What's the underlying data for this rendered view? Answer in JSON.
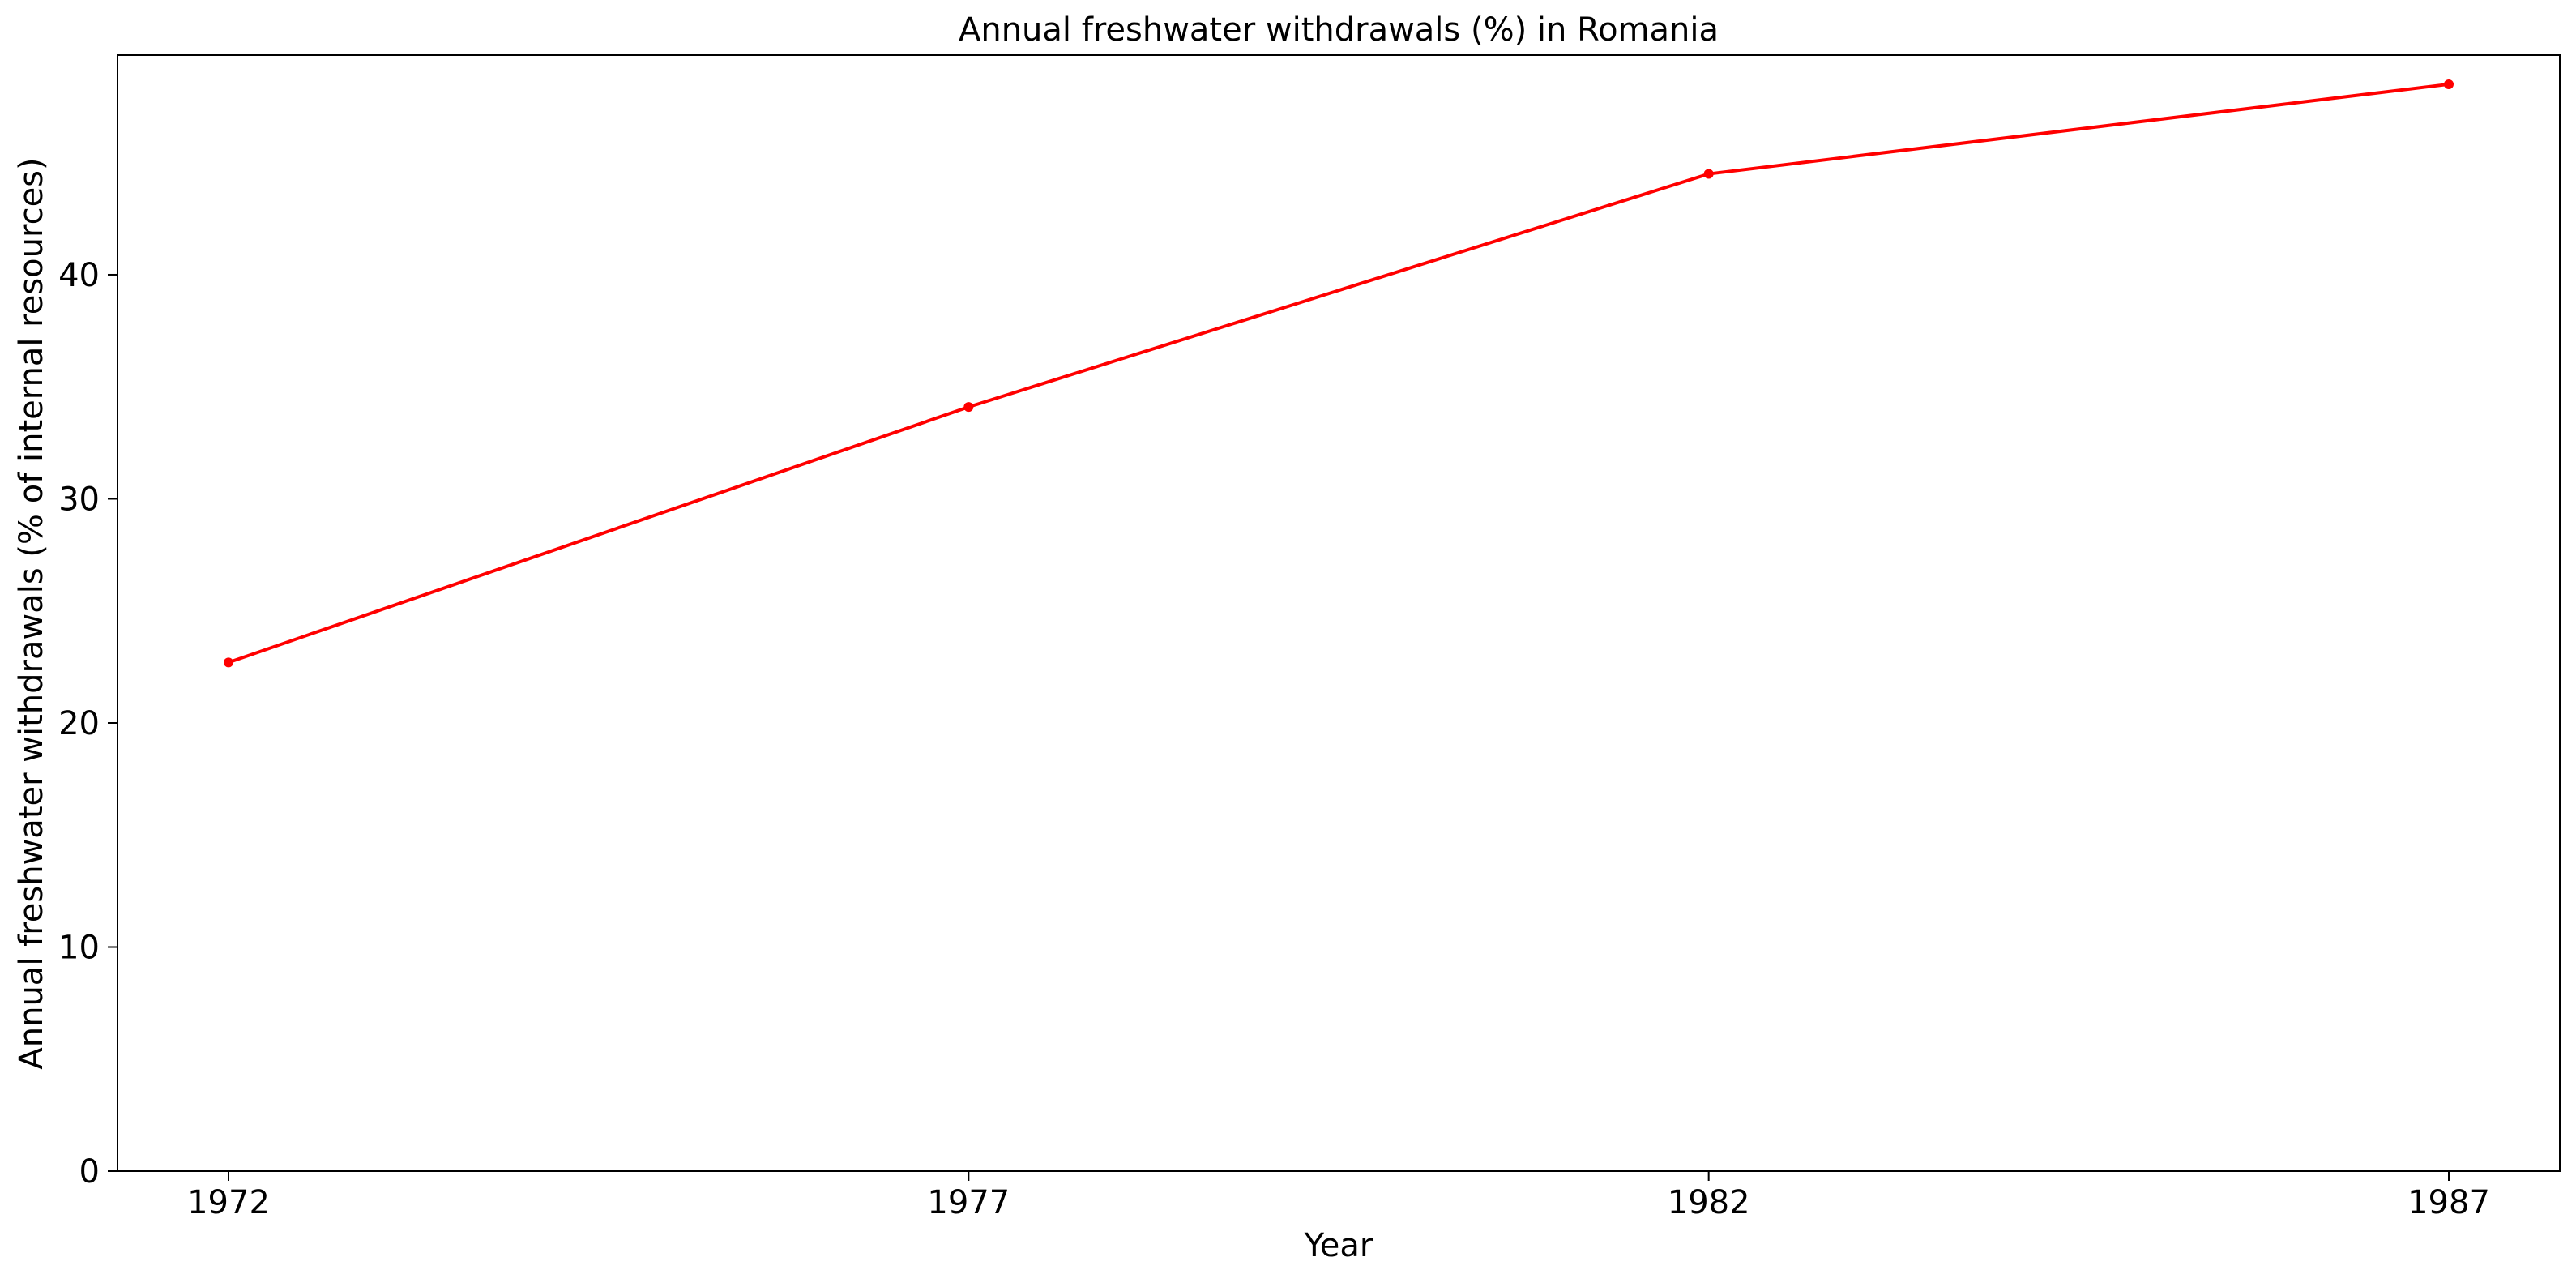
{
  "chart_data": {
    "type": "line",
    "title": "Annual freshwater withdrawals (%) in Romania",
    "xlabel": "Year",
    "ylabel": "Annual freshwater withdrawals (% of internal resources)",
    "x": [
      1972,
      1977,
      1982,
      1987
    ],
    "series": [
      {
        "values": [
          22.7,
          34.1,
          44.5,
          48.5
        ],
        "color": "#ff0000",
        "marker": "circle"
      }
    ],
    "xticks": [
      "1972",
      "1977",
      "1982",
      "1987"
    ],
    "yticks": [
      "0",
      "10",
      "20",
      "30",
      "40"
    ],
    "ylim": [
      0,
      49.8
    ],
    "xlim": [
      1971.25,
      1987.75
    ],
    "grid": false
  }
}
